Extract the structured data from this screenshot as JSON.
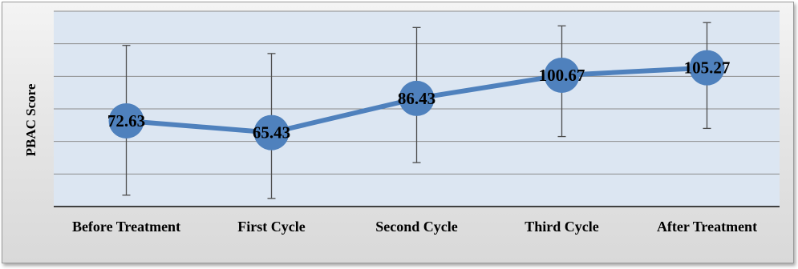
{
  "chart_data": {
    "type": "line",
    "title": "",
    "xlabel": "",
    "ylabel": "PBAC Score",
    "categories": [
      "Before Treatment",
      "First Cycle",
      "Second Cycle",
      "Third Cycle",
      "After Treatment"
    ],
    "series": [
      {
        "values": [
          72.63,
          65.43,
          86.43,
          100.67,
          105.27
        ],
        "error_low": [
          27,
          25,
          47,
          63,
          68
        ],
        "error_high": [
          119,
          114,
          130,
          131,
          133
        ]
      }
    ],
    "data_labels": [
      "72.63",
      "65.43",
      "86.43",
      "100.67",
      "105.27"
    ],
    "ylim": [
      20,
      140
    ],
    "grid": true,
    "legend": "none",
    "colors": {
      "line": "#4f81bd",
      "marker": "#4f81bd",
      "plot_bg": "#dce6f2",
      "grid": "#8c8c8c",
      "error_bar": "#4d4d4d"
    }
  }
}
